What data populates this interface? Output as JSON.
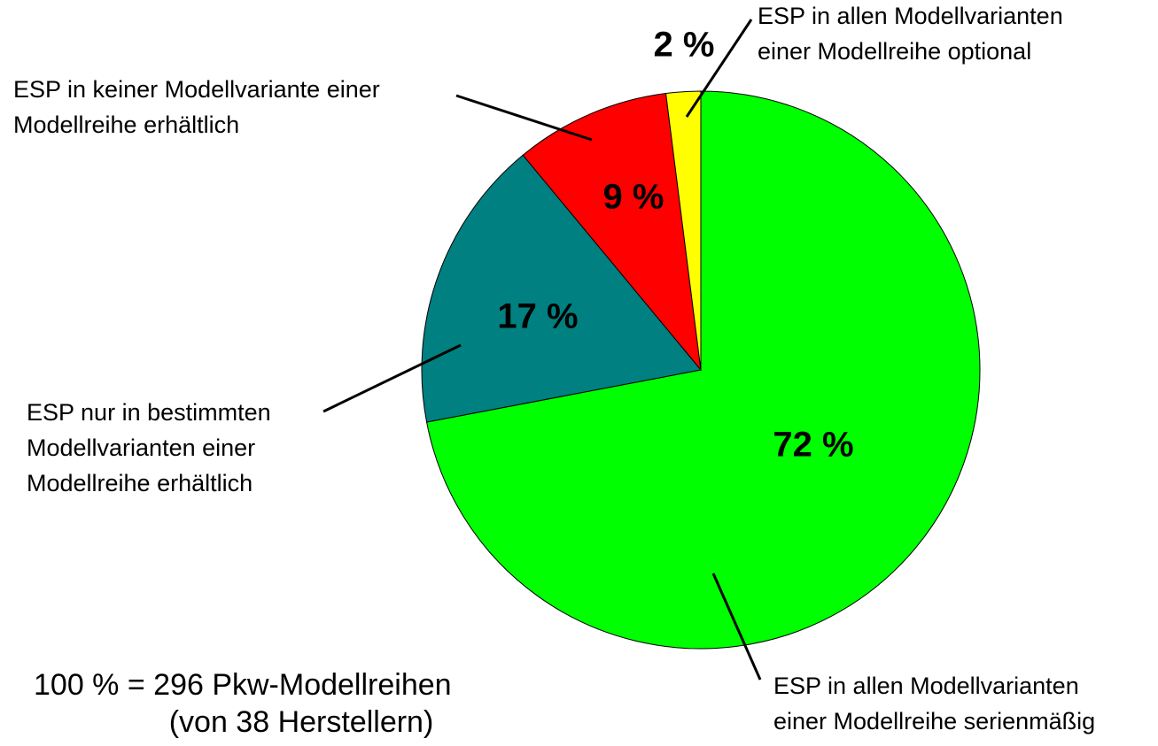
{
  "chart_data": {
    "type": "pie",
    "categories": [
      [
        "ESP in allen Modellvarianten",
        "einer Modellreihe serienmäßig"
      ],
      [
        "ESP nur in bestimmten",
        "Modellvarianten einer",
        "Modellreihe erhältlich"
      ],
      [
        "ESP in keiner Modellvariante einer",
        "Modellreihe erhältlich"
      ],
      [
        "ESP in allen Modellvarianten",
        "einer Modellreihe optional"
      ]
    ],
    "values": [
      72,
      17,
      9,
      2
    ],
    "value_labels": [
      "72 %",
      "17 %",
      "9 %",
      "2 %"
    ],
    "colors": [
      "#00ff00",
      "#008080",
      "#ff0000",
      "#ffff00"
    ],
    "annotations": [
      "100 % = 296 Pkw-Modellreihen",
      "(von 38 Herstellern)"
    ]
  }
}
